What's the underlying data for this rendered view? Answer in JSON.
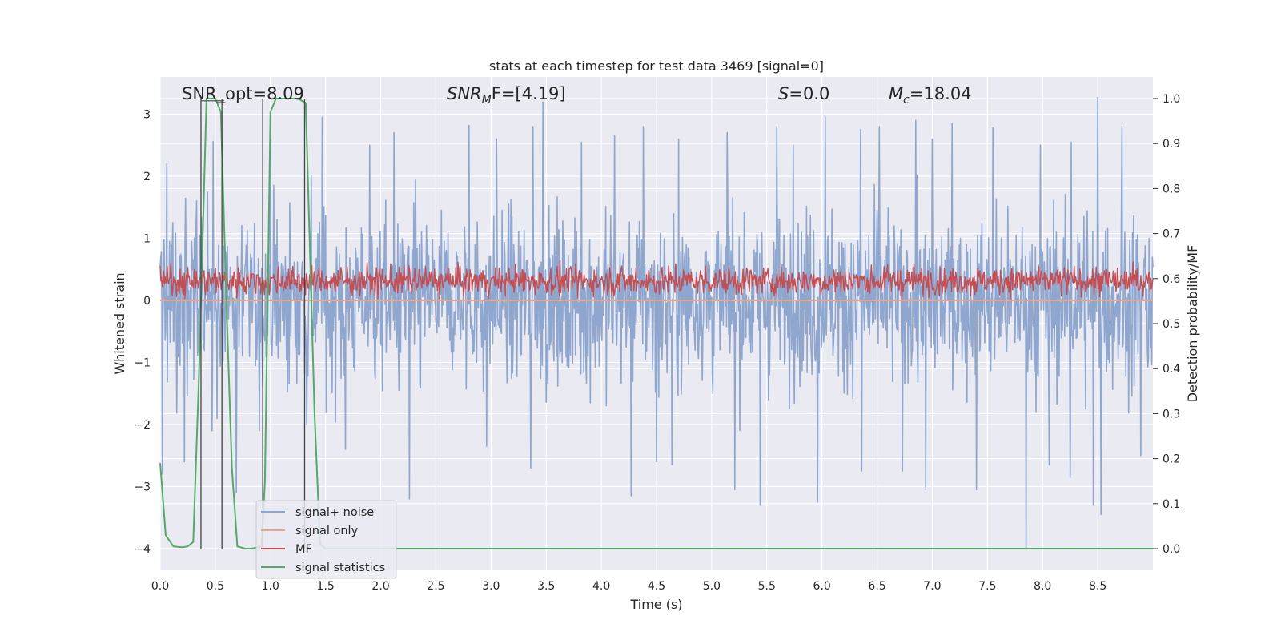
{
  "chart_data": {
    "type": "line",
    "title": "stats at each timestep for test data 3469 [signal=0]",
    "xlabel": "Time (s)",
    "ylabel": "Whitened strain",
    "ylabel_right": "Detection probability/MF",
    "xlim": [
      0,
      9.0
    ],
    "ylim": [
      -4.35,
      3.6
    ],
    "ylim_right": [
      -0.048,
      1.048
    ],
    "grid": true,
    "x_ticks": [
      "0.0",
      "0.5",
      "1.0",
      "1.5",
      "2.0",
      "2.5",
      "3.0",
      "3.5",
      "4.0",
      "4.5",
      "5.0",
      "5.5",
      "6.0",
      "6.5",
      "7.0",
      "7.5",
      "8.0",
      "8.5"
    ],
    "y_ticks": [
      "3",
      "2",
      "1",
      "0",
      "−1",
      "−2",
      "−3",
      "−4"
    ],
    "y_ticks_right": [
      "1.0",
      "0.9",
      "0.8",
      "0.7",
      "0.6",
      "0.5",
      "0.4",
      "0.3",
      "0.2",
      "0.1",
      "0.0"
    ],
    "annotations": [
      {
        "id": "snr-opt",
        "text": "SNR_opt=8.09"
      },
      {
        "id": "snr-mf",
        "var": "SNR",
        "sub": "M",
        "suffix": "F=[4.19]"
      },
      {
        "id": "s-stat",
        "var": "S",
        "suffix": "=0.0"
      },
      {
        "id": "mc",
        "var": "M",
        "sub": "c",
        "suffix": "=18.04"
      }
    ],
    "legend": {
      "location": "lower-left",
      "entries": [
        {
          "label": "signal+ noise",
          "color": "#8fa6cf"
        },
        {
          "label": "signal only",
          "color": "#e8a58c"
        },
        {
          "label": "MF",
          "color": "#c44e52"
        },
        {
          "label": "signal statistics",
          "color": "#55a868"
        }
      ]
    },
    "series": [
      {
        "name": "signal+ noise",
        "axis": "left",
        "color": "#8fa6cf",
        "description": "dense whitened strain noise, roughly -2.6 to 2.6 with spikes",
        "spikes_up": [
          [
            0.06,
            2.2
          ],
          [
            0.22,
            2.5
          ],
          [
            0.48,
            2.56
          ],
          [
            0.69,
            2.9
          ],
          [
            1.0,
            2.6
          ],
          [
            1.47,
            2.95
          ],
          [
            1.9,
            2.5
          ],
          [
            2.12,
            2.7
          ],
          [
            2.8,
            2.82
          ],
          [
            3.05,
            2.6
          ],
          [
            3.38,
            2.8
          ],
          [
            3.47,
            3.2
          ],
          [
            3.82,
            2.55
          ],
          [
            4.12,
            2.65
          ],
          [
            4.38,
            2.8
          ],
          [
            4.7,
            2.6
          ],
          [
            5.14,
            2.7
          ],
          [
            5.59,
            2.8
          ],
          [
            5.74,
            2.5
          ],
          [
            6.03,
            2.95
          ],
          [
            6.35,
            2.75
          ],
          [
            6.52,
            2.8
          ],
          [
            6.85,
            2.9
          ],
          [
            7.0,
            2.6
          ],
          [
            7.18,
            2.85
          ],
          [
            7.55,
            2.78
          ],
          [
            7.98,
            2.5
          ],
          [
            8.26,
            2.55
          ],
          [
            8.5,
            3.27
          ],
          [
            8.72,
            2.8
          ]
        ],
        "spikes_down": [
          [
            0.02,
            -2.8
          ],
          [
            0.22,
            -2.6
          ],
          [
            0.47,
            -2.1
          ],
          [
            0.69,
            -3.1
          ],
          [
            0.9,
            -2.1
          ],
          [
            1.33,
            -2.0
          ],
          [
            1.68,
            -2.4
          ],
          [
            2.26,
            -3.2
          ],
          [
            2.96,
            -2.35
          ],
          [
            3.36,
            -2.7
          ],
          [
            4.27,
            -3.15
          ],
          [
            4.5,
            -2.6
          ],
          [
            4.64,
            -2.65
          ],
          [
            5.21,
            -3.05
          ],
          [
            5.44,
            -3.3
          ],
          [
            5.96,
            -3.25
          ],
          [
            6.36,
            -2.75
          ],
          [
            6.73,
            -2.75
          ],
          [
            6.94,
            -3.05
          ],
          [
            7.4,
            -3.05
          ],
          [
            7.85,
            -4.0
          ],
          [
            8.06,
            -2.65
          ],
          [
            8.25,
            -2.85
          ],
          [
            8.46,
            -3.3
          ],
          [
            8.53,
            -3.45
          ],
          [
            8.89,
            -2.5
          ]
        ]
      },
      {
        "name": "signal only",
        "axis": "left",
        "color": "#e8a58c",
        "description": "flat near zero (signal=0)",
        "x": [
          0,
          9.0
        ],
        "y": [
          0,
          0
        ]
      },
      {
        "name": "MF",
        "axis": "right",
        "color": "#c44e52",
        "description": "matched-filter output oscillating about 0.58-0.6 (right axis), range approx 0.55-0.68"
      },
      {
        "name": "signal statistics",
        "axis": "right",
        "color": "#55a868",
        "x": [
          0.0,
          0.05,
          0.12,
          0.2,
          0.25,
          0.3,
          0.35,
          0.42,
          0.5,
          0.55,
          0.6,
          0.65,
          0.7,
          0.77,
          0.83,
          0.92,
          0.95,
          1.0,
          1.05,
          1.12,
          1.2,
          1.25,
          1.32,
          1.4,
          1.45,
          1.5,
          9.0
        ],
        "y": [
          0.19,
          0.03,
          0.005,
          0.003,
          0.005,
          0.015,
          0.37,
          1.0,
          1.0,
          0.97,
          0.55,
          0.18,
          0.005,
          0.0,
          0.0,
          0.005,
          0.15,
          0.97,
          1.0,
          1.0,
          1.0,
          1.0,
          0.99,
          0.3,
          0.01,
          0.0,
          0.0
        ]
      }
    ],
    "vertical_markers": [
      {
        "x": 0.37,
        "color": "#444444"
      },
      {
        "x": 0.56,
        "color": "#444444"
      },
      {
        "x": 0.93,
        "color": "#444444"
      },
      {
        "x": 1.31,
        "color": "#444444"
      }
    ]
  }
}
